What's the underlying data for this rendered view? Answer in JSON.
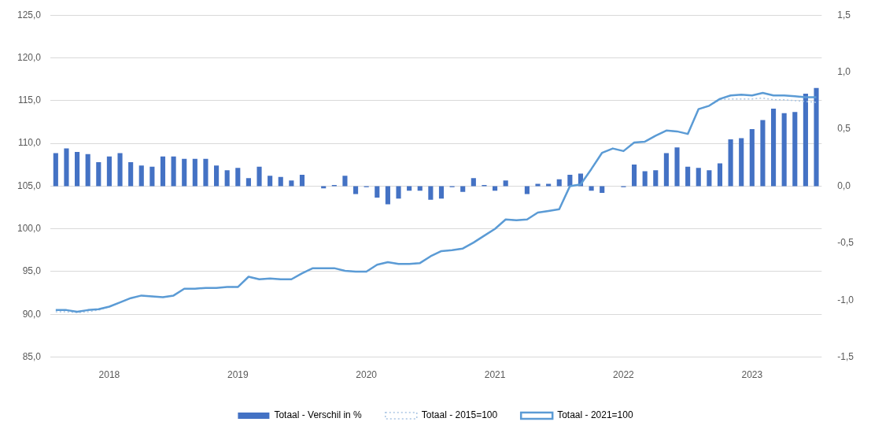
{
  "chart_data": {
    "type": "bar",
    "categories": [
      null,
      null,
      null,
      null,
      null,
      "2018",
      null,
      null,
      null,
      null,
      null,
      null,
      null,
      null,
      null,
      null,
      null,
      "2019",
      null,
      null,
      null,
      null,
      null,
      null,
      null,
      null,
      null,
      null,
      null,
      "2020",
      null,
      null,
      null,
      null,
      null,
      null,
      null,
      null,
      null,
      null,
      null,
      "2021",
      null,
      null,
      null,
      null,
      null,
      null,
      null,
      null,
      null,
      null,
      null,
      "2022",
      null,
      null,
      null,
      null,
      null,
      null,
      null,
      null,
      null,
      null,
      null,
      "2023",
      null,
      null,
      null,
      null,
      null,
      null
    ],
    "series": [
      {
        "name": "Totaal - Verschil in %",
        "color": "#4472c4",
        "axis": "y2",
        "values": [
          0.29,
          0.33,
          0.3,
          0.28,
          0.21,
          0.26,
          0.29,
          0.21,
          0.18,
          0.17,
          0.26,
          0.26,
          0.24,
          0.24,
          0.24,
          0.18,
          0.14,
          0.16,
          0.07,
          0.17,
          0.09,
          0.08,
          0.05,
          0.1,
          0.0,
          -0.02,
          0.01,
          0.09,
          -0.07,
          -0.01,
          -0.1,
          -0.16,
          -0.11,
          -0.04,
          -0.04,
          -0.12,
          -0.11,
          -0.01,
          -0.05,
          0.07,
          0.01,
          -0.04,
          0.05,
          0.0,
          -0.07,
          0.02,
          0.02,
          0.06,
          0.1,
          0.11,
          -0.04,
          -0.06,
          0.0,
          -0.01,
          0.19,
          0.13,
          0.14,
          0.29,
          0.34,
          0.17,
          0.16,
          0.14,
          0.2,
          0.41,
          0.42,
          0.5,
          0.58,
          0.68,
          0.64,
          0.65,
          0.81,
          0.86
        ]
      },
      {
        "name": "Totaal - 2015=100",
        "type": "line",
        "color": "#a9c5e3",
        "line_style": "dotted",
        "values": [
          90.3,
          90.3,
          90.2,
          90.3,
          90.5,
          90.9,
          91.4,
          91.9,
          92.2,
          92.1,
          92.0,
          92.2,
          93.0,
          93.0,
          93.1,
          93.1,
          93.2,
          93.2,
          94.4,
          94.1,
          94.2,
          94.1,
          94.1,
          94.8,
          95.4,
          95.4,
          95.4,
          95.1,
          95.0,
          95.0,
          95.8,
          96.1,
          95.9,
          95.9,
          96.0,
          96.8,
          97.4,
          97.5,
          97.7,
          98.4,
          99.2,
          100.0,
          101.1,
          101.0,
          101.1,
          101.9,
          102.1,
          102.3,
          105.0,
          105.2,
          107.0,
          108.9,
          109.4,
          109.1,
          110.1,
          110.2,
          110.9,
          111.5,
          111.4,
          111.1,
          114.0,
          114.4,
          115.1,
          115.2,
          115.2,
          115.2,
          115.3,
          115.1,
          115.1,
          115.0,
          114.9,
          114.8
        ]
      },
      {
        "name": "Totaal - 2021=100",
        "type": "line",
        "color": "#5b9bd5",
        "line_style": "solid",
        "values": [
          90.5,
          90.5,
          90.3,
          90.5,
          90.6,
          90.9,
          91.4,
          91.9,
          92.2,
          92.1,
          92.0,
          92.2,
          93.0,
          93.0,
          93.1,
          93.1,
          93.2,
          93.2,
          94.4,
          94.1,
          94.2,
          94.1,
          94.1,
          94.8,
          95.4,
          95.4,
          95.4,
          95.1,
          95.0,
          95.0,
          95.8,
          96.1,
          95.9,
          95.9,
          96.0,
          96.8,
          97.4,
          97.5,
          97.7,
          98.4,
          99.2,
          100.0,
          101.1,
          101.0,
          101.1,
          101.9,
          102.1,
          102.3,
          105.0,
          105.2,
          107.0,
          108.9,
          109.4,
          109.1,
          110.1,
          110.2,
          110.9,
          111.5,
          111.4,
          111.1,
          114.0,
          114.4,
          115.2,
          115.6,
          115.7,
          115.6,
          115.9,
          115.6,
          115.6,
          115.5,
          115.4,
          115.4
        ]
      }
    ],
    "ylim": [
      85,
      125
    ],
    "yticks": [
      {
        "value": 85,
        "label": "85,0"
      },
      {
        "value": 90,
        "label": "90,0"
      },
      {
        "value": 95,
        "label": "95,0"
      },
      {
        "value": 100,
        "label": "100,0"
      },
      {
        "value": 105,
        "label": "105,0"
      },
      {
        "value": 110,
        "label": "110,0"
      },
      {
        "value": 115,
        "label": "115,0"
      },
      {
        "value": 120,
        "label": "120,0"
      },
      {
        "value": 125,
        "label": "125,0"
      }
    ],
    "y2lim": [
      -1.5,
      1.5
    ],
    "y2ticks": [
      {
        "value": -1.5,
        "label": "-1,5"
      },
      {
        "value": -1,
        "label": "-1,0"
      },
      {
        "value": -0.5,
        "label": "-0,5"
      },
      {
        "value": 0,
        "label": "0,0"
      },
      {
        "value": 0.5,
        "label": "0,5"
      },
      {
        "value": 1,
        "label": "1,0"
      },
      {
        "value": 1.5,
        "label": "1,5"
      }
    ],
    "grid": "y",
    "legend": "bottom",
    "marker": "none"
  }
}
